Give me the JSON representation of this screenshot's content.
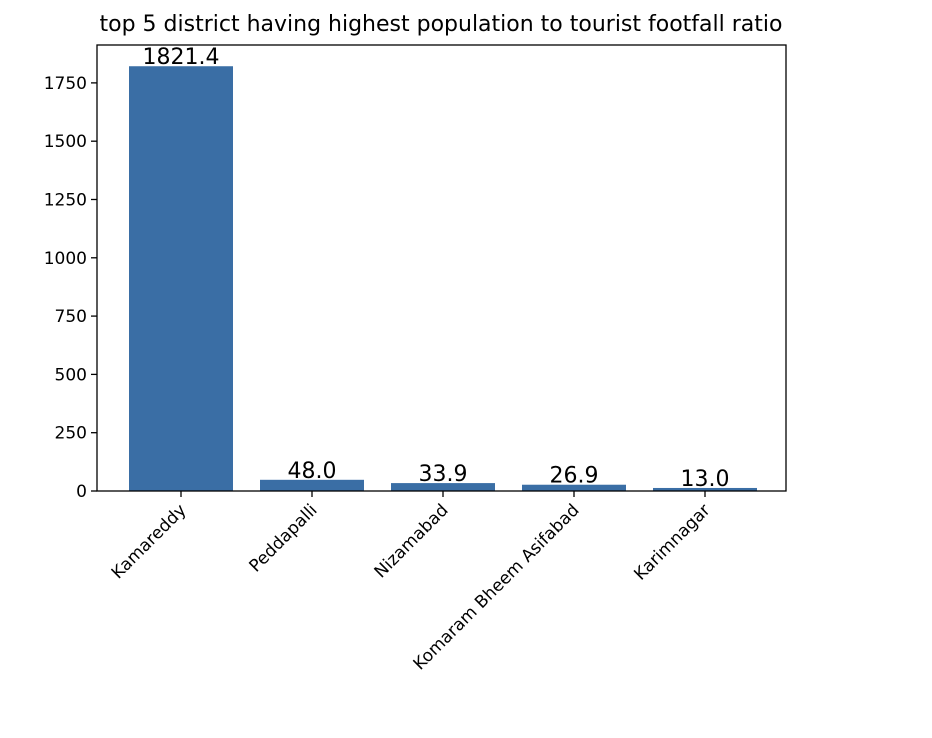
{
  "chart_data": {
    "type": "bar",
    "title": "top 5 district having highest population to tourist footfall ratio",
    "xlabel": "",
    "ylabel": "",
    "categories": [
      "Kamareddy",
      "Peddapalli",
      "Nizamabad",
      "Komaram Bheem Asifabad",
      "Karimnagar"
    ],
    "values": [
      1821.4,
      48.0,
      33.9,
      26.9,
      13.0
    ],
    "value_labels": [
      "1821.4",
      "48.0",
      "33.9",
      "26.9",
      "13.0"
    ],
    "yticks": [
      0,
      250,
      500,
      750,
      1000,
      1250,
      1500,
      1750
    ],
    "ylim": [
      0,
      1912.47
    ],
    "bar_color": "#3a6ea5",
    "grid": false,
    "legend": "none"
  }
}
